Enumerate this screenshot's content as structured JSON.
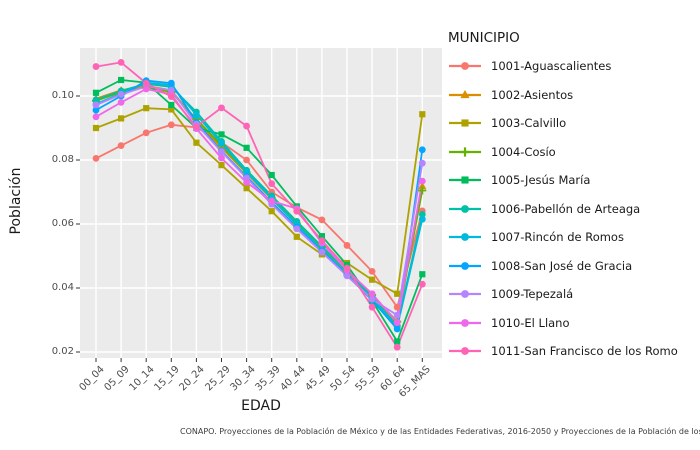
{
  "figure": {
    "background": "#ffffff",
    "panel_background": "#ebebeb",
    "gridline_color": "#ffffff",
    "tick_color": "#333333",
    "axis_text_color": "#4d4d4d"
  },
  "footer": {
    "text": "CONAPO. Proyecciones de la Población de México y de las Entidades Federativas, 2016-2050 y Proyecciones de la Población de los Municipios de México,"
  },
  "chart_data": {
    "type": "line",
    "title": "",
    "xlabel": "EDAD",
    "ylabel": "Población",
    "legend_title": "MUNICIPIO",
    "legend_position": "right",
    "grid": true,
    "categories": [
      "00_04",
      "05_09",
      "10_14",
      "15_19",
      "20_24",
      "25_29",
      "30_34",
      "35_39",
      "40_44",
      "45_49",
      "50_54",
      "55_59",
      "60_64",
      "65_MAS"
    ],
    "y_tick_labels": [
      "0.02",
      "0.04",
      "0.06",
      "0.08",
      "0.10"
    ],
    "y_ticks": [
      0.02,
      0.04,
      0.06,
      0.08,
      0.1
    ],
    "ylim": [
      0.018,
      0.115
    ],
    "series": [
      {
        "name": "1001-Aguascalientes",
        "color": "#F8766D",
        "marker": "circle",
        "values": [
          0.0805,
          0.0845,
          0.0885,
          0.091,
          0.0902,
          0.0855,
          0.08,
          0.07,
          0.0652,
          0.0613,
          0.0533,
          0.0452,
          0.034,
          0.0641
        ]
      },
      {
        "name": "1002-Asientos",
        "color": "#DB8E00",
        "marker": "triangle",
        "values": [
          0.0992,
          0.1018,
          0.1032,
          0.1018,
          0.0922,
          0.0838,
          0.0758,
          0.0678,
          0.0598,
          0.0522,
          0.0448,
          0.0375,
          0.0288,
          0.0718
        ]
      },
      {
        "name": "1003-Calvillo",
        "color": "#AEA200",
        "marker": "square",
        "values": [
          0.09,
          0.093,
          0.0962,
          0.0958,
          0.0854,
          0.0784,
          0.0712,
          0.064,
          0.056,
          0.0505,
          0.0478,
          0.0426,
          0.0382,
          0.0943
        ]
      },
      {
        "name": "1004-Cosío",
        "color": "#64B200",
        "marker": "plus",
        "values": [
          0.0985,
          0.1012,
          0.1028,
          0.1012,
          0.0928,
          0.0845,
          0.0762,
          0.0682,
          0.0602,
          0.0528,
          0.0452,
          0.0378,
          0.0295,
          0.0705
        ]
      },
      {
        "name": "1005-Jesús María",
        "color": "#00BD5C",
        "marker": "square",
        "values": [
          0.101,
          0.105,
          0.1042,
          0.0972,
          0.09,
          0.088,
          0.0838,
          0.0753,
          0.0655,
          0.0562,
          0.0472,
          0.036,
          0.0233,
          0.0443
        ]
      },
      {
        "name": "1006-Pabellón de Arteaga",
        "color": "#00C1A7",
        "marker": "circle",
        "values": [
          0.0988,
          0.1016,
          0.1038,
          0.1028,
          0.095,
          0.0858,
          0.0768,
          0.0688,
          0.0608,
          0.053,
          0.0452,
          0.0372,
          0.0282,
          0.063
        ]
      },
      {
        "name": "1007-Rincón de Romos",
        "color": "#00BADE",
        "marker": "circle",
        "values": [
          0.0975,
          0.1008,
          0.1042,
          0.1034,
          0.0941,
          0.0852,
          0.0762,
          0.068,
          0.0598,
          0.052,
          0.0443,
          0.0365,
          0.0278,
          0.0615
        ]
      },
      {
        "name": "1008-San José de Gracia",
        "color": "#00A6FF",
        "marker": "circle",
        "values": [
          0.0956,
          0.1,
          0.1048,
          0.104,
          0.0918,
          0.0828,
          0.0748,
          0.0668,
          0.059,
          0.0515,
          0.044,
          0.0362,
          0.0272,
          0.0832
        ]
      },
      {
        "name": "1009-Tepezalá",
        "color": "#B385FF",
        "marker": "circle",
        "values": [
          0.0972,
          0.1005,
          0.103,
          0.1018,
          0.0912,
          0.0826,
          0.0744,
          0.0662,
          0.0585,
          0.0512,
          0.0438,
          0.0365,
          0.0315,
          0.079
        ]
      },
      {
        "name": "1010-El Llano",
        "color": "#EF67EB",
        "marker": "circle",
        "values": [
          0.0935,
          0.098,
          0.1022,
          0.1005,
          0.0898,
          0.0806,
          0.073,
          0.0672,
          0.0648,
          0.054,
          0.0455,
          0.0382,
          0.0292,
          0.0734
        ]
      },
      {
        "name": "1011-San Francisco de los Romo",
        "color": "#FF63B6",
        "marker": "circle",
        "values": [
          0.1092,
          0.1105,
          0.104,
          0.0998,
          0.0904,
          0.0963,
          0.0906,
          0.0726,
          0.064,
          0.0548,
          0.0462,
          0.034,
          0.0215,
          0.0412
        ]
      }
    ]
  }
}
